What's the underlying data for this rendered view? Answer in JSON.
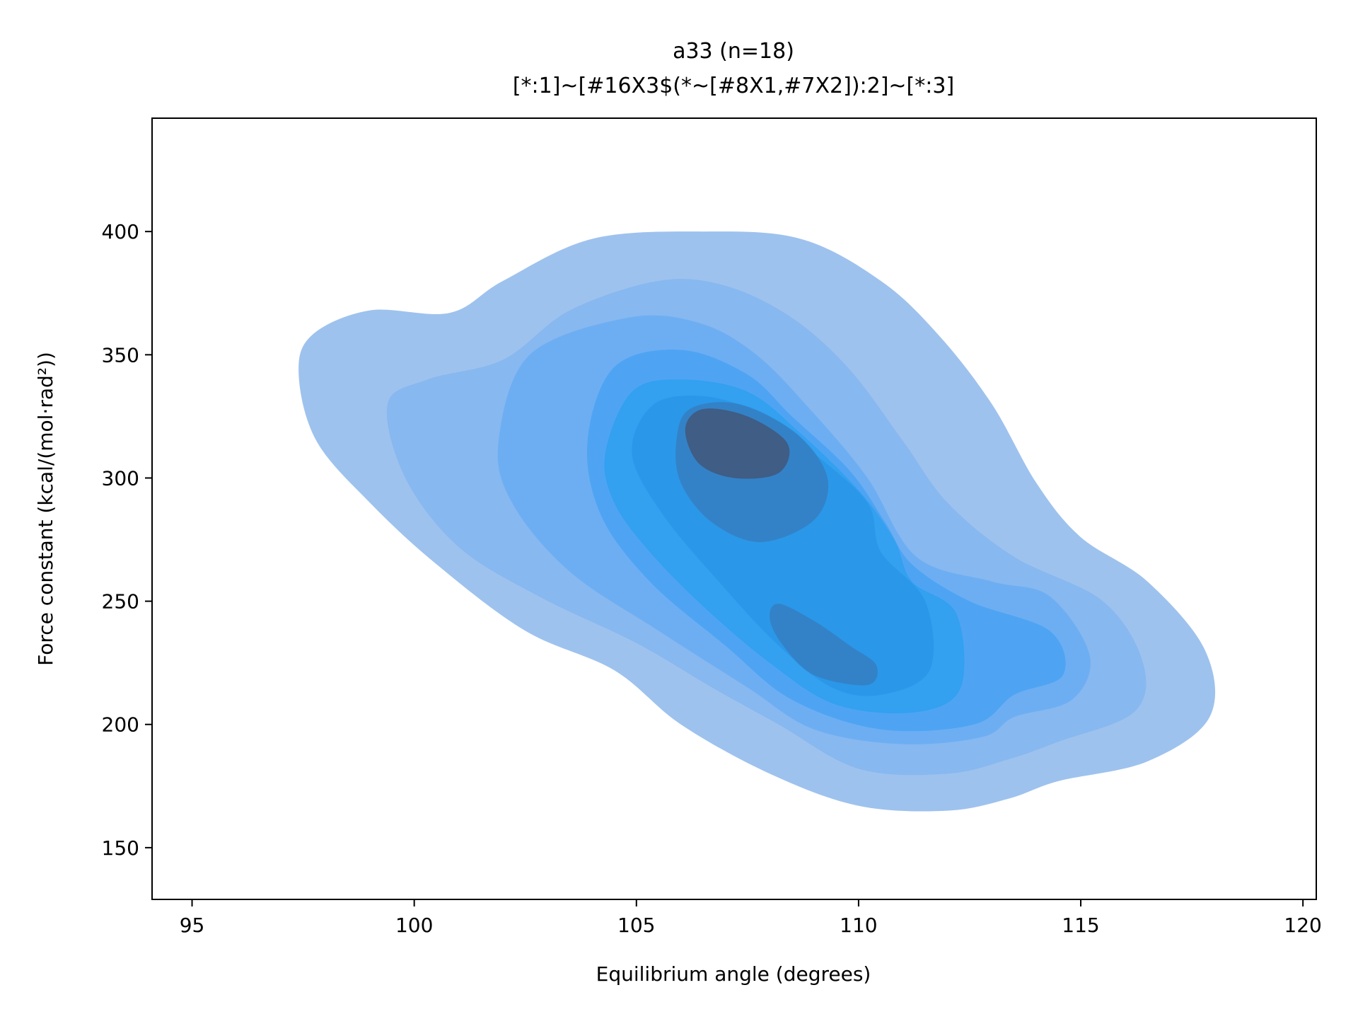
{
  "chart_data": {
    "type": "kde_contour",
    "title": "a33 (n=18)",
    "subtitle": "[*:1]~[#16X3$(*~[#8X1,#7X2]):2]~[*:3]",
    "xlabel": "Equilibrium angle (degrees)",
    "ylabel": "Force constant (kcal/(mol·rad²))",
    "xlim": [
      94.1,
      120.3
    ],
    "ylim": [
      129,
      446
    ],
    "xticks": [
      95,
      100,
      105,
      110,
      115,
      120
    ],
    "yticks": [
      150,
      200,
      250,
      300,
      350,
      400
    ],
    "grid": false,
    "legend": "none",
    "levels": [
      {
        "level": 1,
        "color": "#9ec2ee",
        "rings": [
          [
            [
              97.4,
              342
            ],
            [
              97.7,
              358
            ],
            [
              99.0,
              368
            ],
            [
              100.8,
              367
            ],
            [
              102.0,
              380
            ],
            [
              104.0,
              397
            ],
            [
              106.5,
              400
            ],
            [
              108.7,
              397
            ],
            [
              110.5,
              380
            ],
            [
              111.8,
              358
            ],
            [
              113.0,
              330
            ],
            [
              114.0,
              298
            ],
            [
              115.0,
              276
            ],
            [
              116.5,
              258
            ],
            [
              117.8,
              230
            ],
            [
              117.9,
              203
            ],
            [
              116.5,
              185
            ],
            [
              114.5,
              177
            ],
            [
              113.4,
              170
            ],
            [
              112.0,
              165
            ],
            [
              110.0,
              167
            ],
            [
              108.0,
              180
            ],
            [
              106.0,
              200
            ],
            [
              104.5,
              222
            ],
            [
              102.5,
              238
            ],
            [
              100.5,
              265
            ],
            [
              99.0,
              290
            ],
            [
              97.8,
              315
            ]
          ]
        ]
      },
      {
        "level": 2,
        "color": "#87b8f0",
        "rings": [
          [
            [
              99.4,
              330
            ],
            [
              100.3,
              340
            ],
            [
              102.0,
              348
            ],
            [
              103.5,
              368
            ],
            [
              105.5,
              380
            ],
            [
              107.0,
              378
            ],
            [
              108.5,
              365
            ],
            [
              109.8,
              344
            ],
            [
              111.0,
              315
            ],
            [
              112.0,
              290
            ],
            [
              113.5,
              268
            ],
            [
              115.5,
              250
            ],
            [
              116.4,
              225
            ],
            [
              116.2,
              205
            ],
            [
              114.5,
              193
            ],
            [
              113.4,
              186
            ],
            [
              112.0,
              180
            ],
            [
              110.0,
              182
            ],
            [
              108.2,
              200
            ],
            [
              106.7,
              215
            ],
            [
              105.0,
              233
            ],
            [
              102.8,
              252
            ],
            [
              101.0,
              272
            ],
            [
              99.8,
              300
            ]
          ]
        ]
      },
      {
        "level": 3,
        "color": "#6daef3",
        "rings": [
          [
            [
              101.9,
              315
            ],
            [
              102.6,
              350
            ],
            [
              104.8,
              365
            ],
            [
              106.4,
              363
            ],
            [
              107.7,
              350
            ],
            [
              109.0,
              326
            ],
            [
              110.2,
              300
            ],
            [
              111.3,
              268
            ],
            [
              113.0,
              258
            ],
            [
              114.3,
              252
            ],
            [
              115.2,
              228
            ],
            [
              114.8,
              210
            ],
            [
              113.5,
              203
            ],
            [
              112.8,
              195
            ],
            [
              111.0,
              192
            ],
            [
              109.0,
              198
            ],
            [
              107.5,
              215
            ],
            [
              105.5,
              238
            ],
            [
              103.5,
              262
            ],
            [
              102.2,
              290
            ]
          ]
        ]
      },
      {
        "level": 4,
        "color": "#4ea4f3",
        "rings": [
          [
            [
              103.9,
              315
            ],
            [
              104.5,
              345
            ],
            [
              106.0,
              352
            ],
            [
              107.5,
              342
            ],
            [
              108.5,
              325
            ],
            [
              109.8,
              303
            ],
            [
              110.6,
              282
            ],
            [
              111.2,
              265
            ],
            [
              112.5,
              250
            ],
            [
              114.3,
              238
            ],
            [
              114.6,
              220
            ],
            [
              113.5,
              212
            ],
            [
              112.6,
              200
            ],
            [
              110.5,
              198
            ],
            [
              108.5,
              210
            ],
            [
              107.0,
              232
            ],
            [
              105.3,
              258
            ],
            [
              104.2,
              285
            ]
          ],
          [
            [
              113.0,
              243
            ],
            [
              113.3,
              244
            ],
            [
              113.6,
              240
            ],
            [
              113.4,
              237
            ],
            [
              113.1,
              238
            ]
          ]
        ]
      },
      {
        "level": 5,
        "color": "#33a0f0",
        "rings": [
          [
            [
              104.3,
              310
            ],
            [
              104.9,
              335
            ],
            [
              106.0,
              340
            ],
            [
              107.5,
              335
            ],
            [
              108.7,
              318
            ],
            [
              110.0,
              295
            ],
            [
              110.8,
              275
            ],
            [
              111.2,
              258
            ],
            [
              112.2,
              245
            ],
            [
              112.3,
              215
            ],
            [
              111.3,
              205
            ],
            [
              109.5,
              208
            ],
            [
              108.0,
              225
            ],
            [
              106.5,
              248
            ],
            [
              105.3,
              270
            ],
            [
              104.5,
              290
            ]
          ]
        ]
      },
      {
        "level": 6,
        "color": "#2b97e8",
        "rings": [
          [
            [
              104.9,
              310
            ],
            [
              105.4,
              330
            ],
            [
              106.6,
              333
            ],
            [
              107.9,
              325
            ],
            [
              109.0,
              310
            ],
            [
              110.2,
              290
            ],
            [
              110.5,
              270
            ],
            [
              111.5,
              250
            ],
            [
              111.6,
              222
            ],
            [
              110.5,
              212
            ],
            [
              109.4,
              215
            ],
            [
              108.2,
              232
            ],
            [
              107.0,
              255
            ],
            [
              105.6,
              285
            ]
          ]
        ]
      },
      {
        "level": 7,
        "color": "#3382c8",
        "rings": [
          [
            [
              105.9,
              315
            ],
            [
              106.2,
              328
            ],
            [
              107.3,
              330
            ],
            [
              108.6,
              318
            ],
            [
              109.3,
              300
            ],
            [
              109.0,
              283
            ],
            [
              107.8,
              274
            ],
            [
              106.7,
              282
            ],
            [
              106.0,
              298
            ]
          ],
          [
            [
              108.2,
              249
            ],
            [
              109.0,
              242
            ],
            [
              109.8,
              232
            ],
            [
              110.4,
              224
            ],
            [
              110.2,
              216
            ],
            [
              109.0,
              220
            ],
            [
              108.3,
              232
            ],
            [
              108.0,
              243
            ]
          ]
        ]
      },
      {
        "level": 8,
        "color": "#3f5d85",
        "rings": [
          [
            [
              106.1,
              320
            ],
            [
              106.5,
              328
            ],
            [
              107.5,
              325
            ],
            [
              108.4,
              314
            ],
            [
              108.2,
              302
            ],
            [
              107.2,
              300
            ],
            [
              106.4,
              306
            ]
          ]
        ]
      }
    ]
  }
}
